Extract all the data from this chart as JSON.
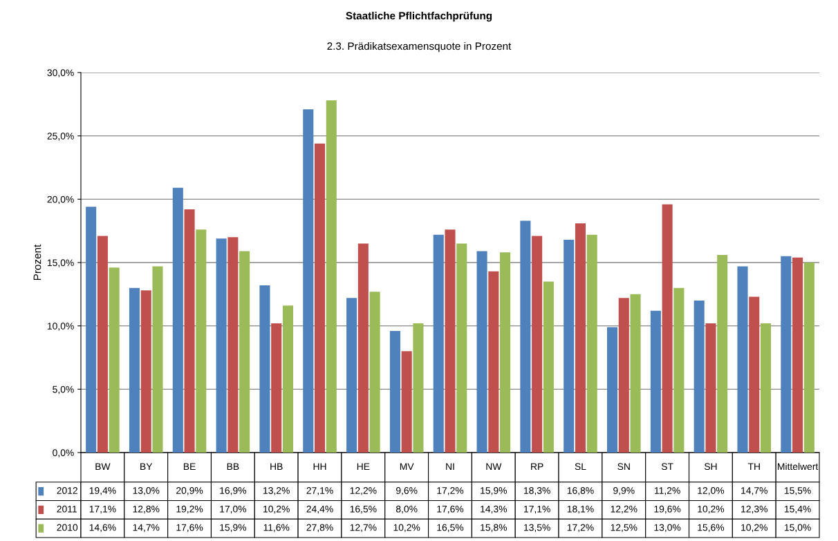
{
  "chart_data": {
    "type": "bar",
    "title": "Staatliche Pflichtfachprüfung",
    "subtitle": "2.3. Prädikatsexamensquote in Prozent",
    "ylabel": "Prozent",
    "categories": [
      "BW",
      "BY",
      "BE",
      "BB",
      "HB",
      "HH",
      "HE",
      "MV",
      "NI",
      "NW",
      "RP",
      "SL",
      "SN",
      "ST",
      "SH",
      "TH",
      "Mittelwert"
    ],
    "series": [
      {
        "name": "2012",
        "color": "#4f81bd",
        "values": [
          19.4,
          13.0,
          20.9,
          16.9,
          13.2,
          27.1,
          12.2,
          9.6,
          17.2,
          15.9,
          18.3,
          16.8,
          9.9,
          11.2,
          12.0,
          14.7,
          15.5
        ],
        "value_labels": [
          "19,4%",
          "13,0%",
          "20,9%",
          "16,9%",
          "13,2%",
          "27,1%",
          "12,2%",
          "9,6%",
          "17,2%",
          "15,9%",
          "18,3%",
          "16,8%",
          "9,9%",
          "11,2%",
          "12,0%",
          "14,7%",
          "15,5%"
        ]
      },
      {
        "name": "2011",
        "color": "#c0504d",
        "values": [
          17.1,
          12.8,
          19.2,
          17.0,
          10.2,
          24.4,
          16.5,
          8.0,
          17.6,
          14.3,
          17.1,
          18.1,
          12.2,
          19.6,
          10.2,
          12.3,
          15.4
        ],
        "value_labels": [
          "17,1%",
          "12,8%",
          "19,2%",
          "17,0%",
          "10,2%",
          "24,4%",
          "16,5%",
          "8,0%",
          "17,6%",
          "14,3%",
          "17,1%",
          "18,1%",
          "12,2%",
          "19,6%",
          "10,2%",
          "12,3%",
          "15,4%"
        ]
      },
      {
        "name": "2010",
        "color": "#9bbb59",
        "values": [
          14.6,
          14.7,
          17.6,
          15.9,
          11.6,
          27.8,
          12.7,
          10.2,
          16.5,
          15.8,
          13.5,
          17.2,
          12.5,
          13.0,
          15.6,
          10.2,
          15.0
        ],
        "value_labels": [
          "14,6%",
          "14,7%",
          "17,6%",
          "15,9%",
          "11,6%",
          "27,8%",
          "12,7%",
          "10,2%",
          "16,5%",
          "15,8%",
          "13,5%",
          "17,2%",
          "12,5%",
          "13,0%",
          "15,6%",
          "10,2%",
          "15,0%"
        ]
      }
    ],
    "ylim": [
      0,
      30
    ],
    "yticks": [
      {
        "value": 0,
        "label": "0,0%"
      },
      {
        "value": 5,
        "label": "5,0%"
      },
      {
        "value": 10,
        "label": "10,0%"
      },
      {
        "value": 15,
        "label": "15,0%"
      },
      {
        "value": 20,
        "label": "20,0%"
      },
      {
        "value": 25,
        "label": "25,0%"
      },
      {
        "value": 30,
        "label": "30,0%"
      }
    ],
    "grid": "y",
    "legend": "bottom",
    "tick_labels": "y"
  }
}
